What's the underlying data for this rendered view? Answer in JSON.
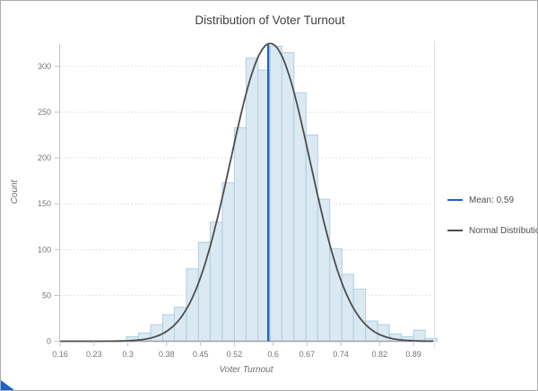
{
  "title": "Distribution of Voter Turnout",
  "axes": {
    "x": {
      "label": "Voter Turnout",
      "min": 0.16,
      "max": 0.93,
      "ticks": [
        0.16,
        0.23,
        0.3,
        0.38,
        0.45,
        0.52,
        0.6,
        0.67,
        0.74,
        0.82,
        0.89
      ],
      "tick_labels": [
        "0.16",
        "0.23",
        "0.3",
        "0.38",
        "0.45",
        "0.52",
        "0.6",
        "0.67",
        "0.74",
        "0.82",
        "0.89"
      ]
    },
    "y": {
      "label": "Count",
      "min": 0,
      "max": 325,
      "ticks": [
        0,
        50,
        100,
        150,
        200,
        250,
        300
      ]
    }
  },
  "legend": {
    "items": [
      {
        "label": "Mean: 0.59",
        "color": "#1e63c4",
        "swatch": "line"
      },
      {
        "label": "Normal Distribution",
        "color": "#4d4d4d",
        "swatch": "line"
      }
    ]
  },
  "chart_data": {
    "type": "bar",
    "subtype": "histogram",
    "title": "Distribution of Voter Turnout",
    "xlabel": "Voter Turnout",
    "ylabel": "Count",
    "xlim": [
      0.16,
      0.93
    ],
    "ylim": [
      0,
      325
    ],
    "grid": true,
    "legend_position": "right",
    "bins": {
      "bin_width": 0.0247,
      "starts": [
        0.297,
        0.322,
        0.347,
        0.372,
        0.396,
        0.421,
        0.446,
        0.47,
        0.495,
        0.52,
        0.544,
        0.569,
        0.594,
        0.618,
        0.643,
        0.668,
        0.692,
        0.717,
        0.742,
        0.766,
        0.791,
        0.816,
        0.84,
        0.865,
        0.89,
        0.914
      ],
      "counts": [
        5,
        9,
        18,
        29,
        37,
        79,
        108,
        130,
        173,
        233,
        309,
        296,
        322,
        315,
        271,
        225,
        155,
        101,
        73,
        57,
        22,
        18,
        8,
        5,
        12,
        3
      ]
    },
    "mean_line": {
      "value": 0.59,
      "label": "Mean: 0.59"
    },
    "normal_curve": {
      "mean": 0.594,
      "sigma": 0.082,
      "peak": 325,
      "label": "Normal Distribution"
    }
  },
  "colors": {
    "bar_fill": "#dbe9f2",
    "bar_stroke": "#aecfe0",
    "curve": "#4d4d4d",
    "mean": "#1e63c4",
    "grid": "#dadada",
    "axis_line": "#c6c6c6",
    "baseline": "#a0a0a0",
    "separator": "#e2e2e2",
    "accent": "#1e63c4"
  }
}
